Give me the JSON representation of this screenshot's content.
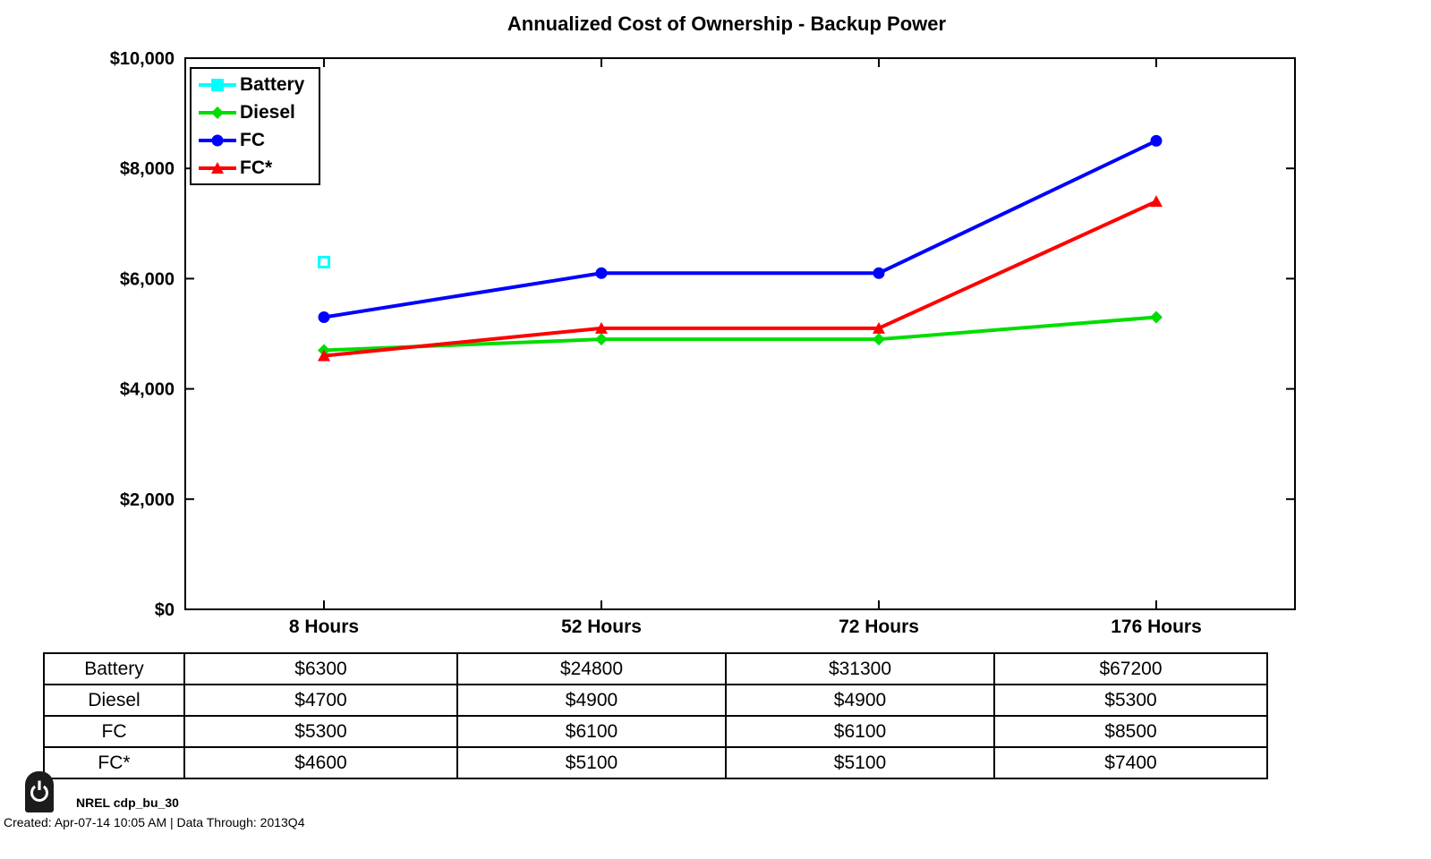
{
  "title": "Annualized Cost of Ownership - Backup Power",
  "chart_data": {
    "type": "line",
    "title": "Annualized Cost of Ownership - Backup Power",
    "categories": [
      "8 Hours",
      "52 Hours",
      "72 Hours",
      "176 Hours"
    ],
    "series": [
      {
        "name": "Battery",
        "color": "#00FFFF",
        "marker": "square",
        "values": [
          6300,
          24800,
          31300,
          67200
        ]
      },
      {
        "name": "Diesel",
        "color": "#00DD00",
        "marker": "diamond",
        "values": [
          4700,
          4900,
          4900,
          5300
        ]
      },
      {
        "name": "FC",
        "color": "#0000FF",
        "marker": "circle",
        "values": [
          5300,
          6100,
          6100,
          8500
        ]
      },
      {
        "name": "FC*",
        "color": "#FF0000",
        "marker": "triangle",
        "values": [
          4600,
          5100,
          5100,
          7400
        ]
      }
    ],
    "xlabel": "",
    "ylabel": "",
    "ylim": [
      0,
      10000
    ],
    "yticks": [
      0,
      2000,
      4000,
      6000,
      8000,
      10000
    ],
    "ytick_labels": [
      "$0",
      "$2,000",
      "$4,000",
      "$6,000",
      "$8,000",
      "$10,000"
    ],
    "grid": false,
    "legend_position": "top-left"
  },
  "table": {
    "row_labels": [
      "Battery",
      "Diesel",
      "FC",
      "FC*"
    ],
    "columns": [
      "8 Hours",
      "52 Hours",
      "72 Hours",
      "176 Hours"
    ],
    "cells": [
      [
        "$6300",
        "$24800",
        "$31300",
        "$67200"
      ],
      [
        "$4700",
        "$4900",
        "$4900",
        "$5300"
      ],
      [
        "$5300",
        "$6100",
        "$6100",
        "$8500"
      ],
      [
        "$4600",
        "$5100",
        "$5100",
        "$7400"
      ]
    ]
  },
  "footer": {
    "source_label": "NREL cdp_bu_30",
    "created_line": "Created: Apr-07-14 10:05 AM | Data Through: 2013Q4"
  }
}
